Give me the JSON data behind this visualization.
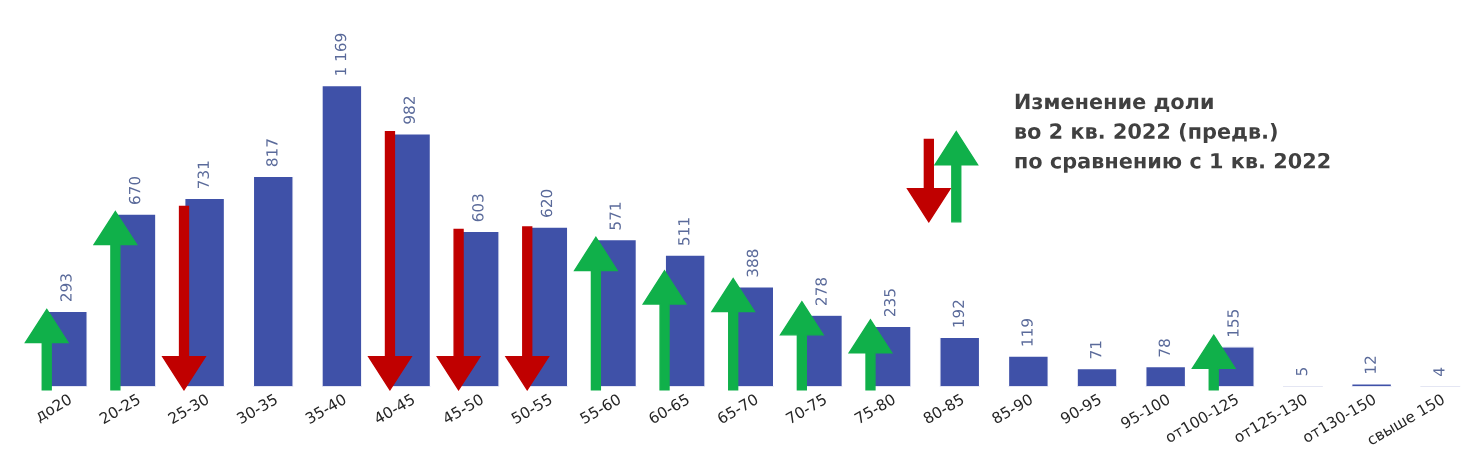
{
  "chart_data": {
    "type": "bar",
    "categories": [
      "до20",
      "20-25",
      "25-30",
      "30-35",
      "35-40",
      "40-45",
      "45-50",
      "50-55",
      "55-60",
      "60-65",
      "65-70",
      "70-75",
      "75-80",
      "80-85",
      "85-90",
      "90-95",
      "95-100",
      "от100-125",
      "от125-130",
      "от130-150",
      "свыше 150"
    ],
    "values": [
      293,
      670,
      731,
      817,
      1169,
      982,
      603,
      620,
      571,
      511,
      388,
      278,
      235,
      192,
      119,
      71,
      78,
      155,
      5,
      12,
      4
    ],
    "value_labels": [
      "293",
      "670",
      "731",
      "817",
      "1 169",
      "982",
      "603",
      "620",
      "571",
      "511",
      "388",
      "278",
      "235",
      "192",
      "119",
      "71",
      "78",
      "155",
      "5",
      "12",
      "4"
    ],
    "color": "#3f51a8",
    "annotations": [
      "Изменение доли\nво 2 кв. 2022 (предв.)\nпо сравнению с 1 кв. 2022"
    ],
    "grid": false
  }
}
